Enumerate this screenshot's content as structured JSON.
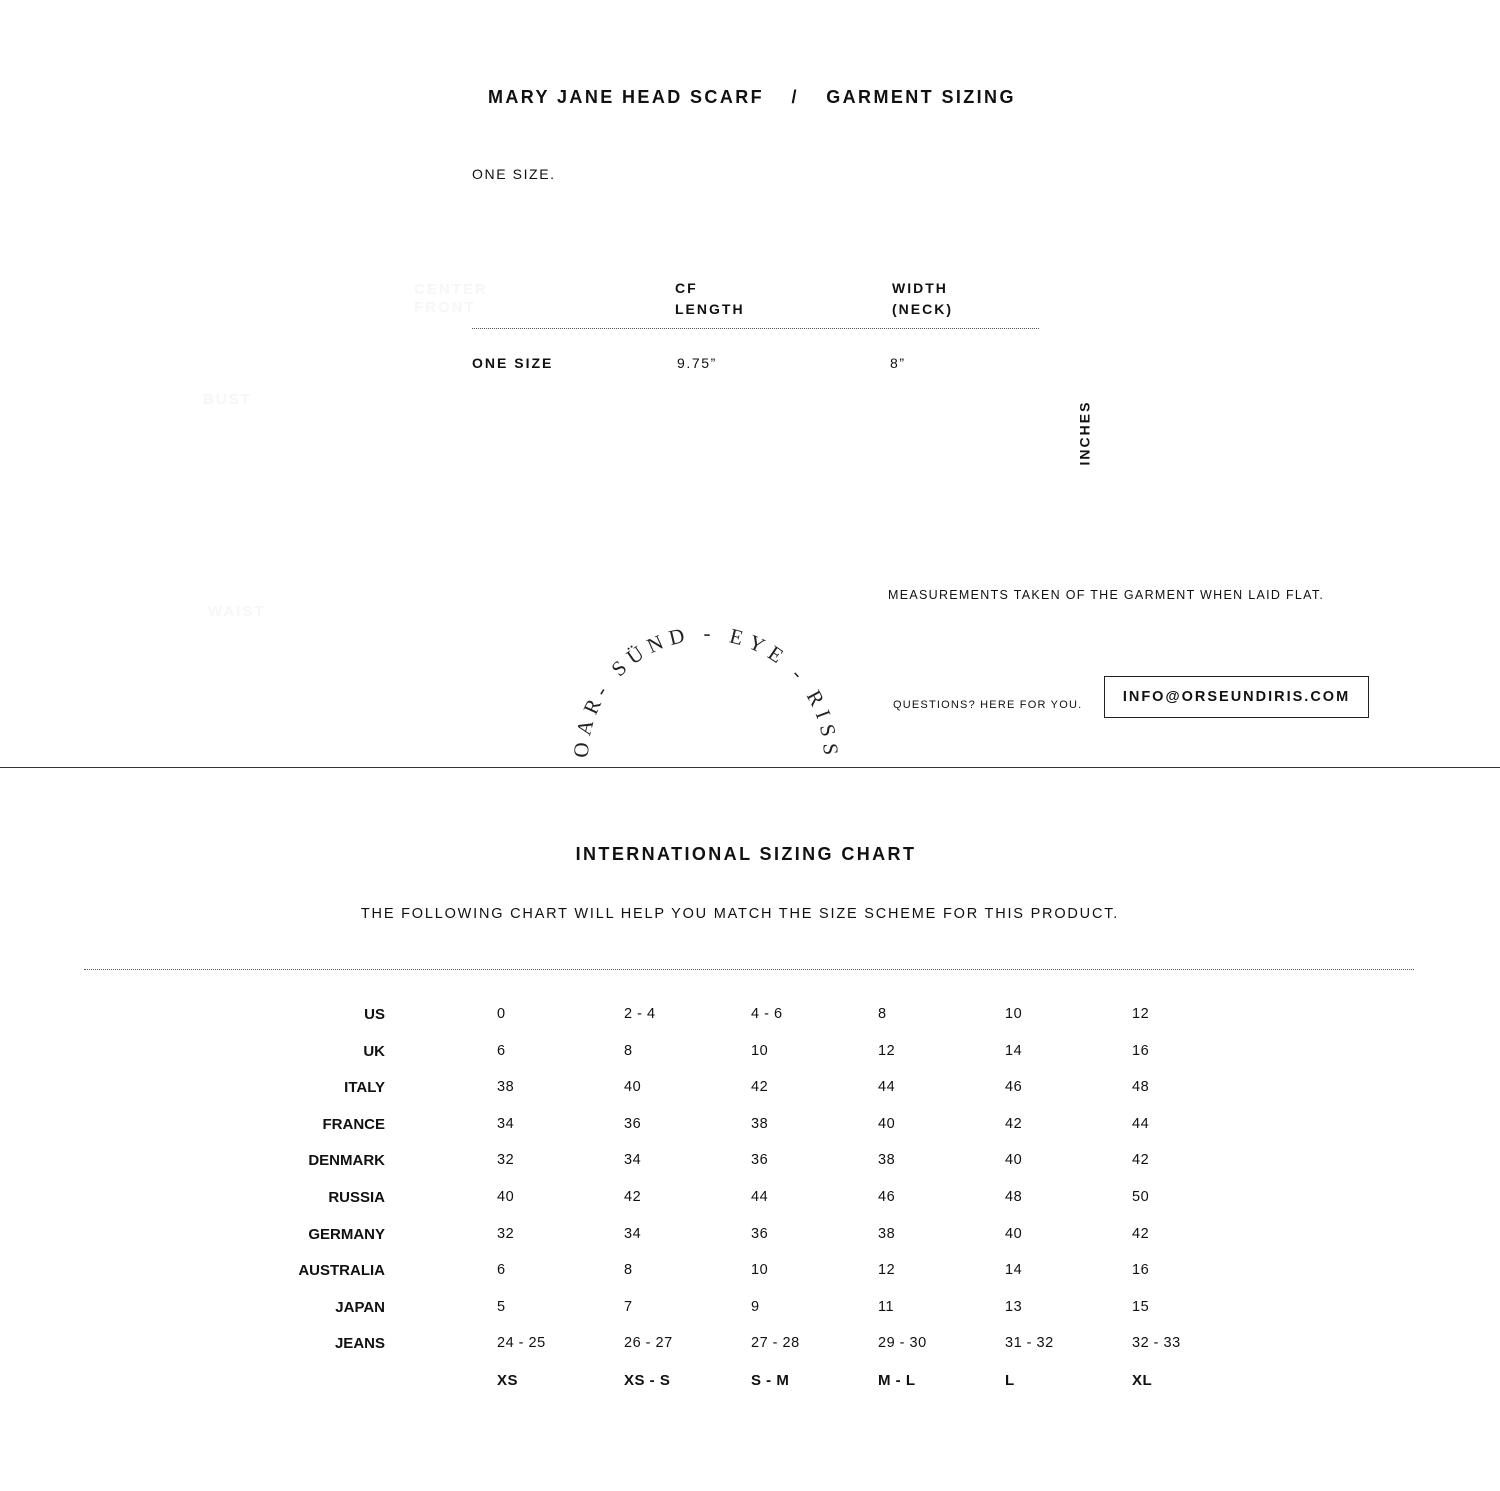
{
  "header": {
    "product": "MARY JANE HEAD SCARF",
    "separator": "/",
    "section": "GARMENT SIZING"
  },
  "size_note": "ONE SIZE.",
  "diagram_labels": {
    "center_front": [
      "CENTER",
      "FRONT"
    ],
    "bust": "BUST",
    "waist": "WAIST"
  },
  "garment_table": {
    "columns": [
      [
        "CF",
        "LENGTH"
      ],
      [
        "WIDTH",
        "(NECK)"
      ]
    ],
    "rows": [
      {
        "label": "ONE SIZE",
        "values": [
          "9.75”",
          "8”"
        ]
      }
    ],
    "unit": "INCHES"
  },
  "measurement_note": "MEASUREMENTS TAKEN OF THE GARMENT WHEN LAID FLAT.",
  "logo_text": "OAR- SÜND - EYE - RISS",
  "contact": {
    "prompt": "QUESTIONS?  HERE FOR YOU.",
    "email": "INFO@ORSEUNDIRIS.COM"
  },
  "international": {
    "title": "INTERNATIONAL SIZING CHART",
    "subtitle": "THE FOLLOWING CHART WILL HELP YOU MATCH THE SIZE SCHEME FOR THIS PRODUCT.",
    "rows": [
      {
        "label": "US",
        "values": [
          "0",
          "2 - 4",
          "4 - 6",
          "8",
          "10",
          "12"
        ]
      },
      {
        "label": "UK",
        "values": [
          "6",
          "8",
          "10",
          "12",
          "14",
          "16"
        ]
      },
      {
        "label": "ITALY",
        "values": [
          "38",
          "40",
          "42",
          "44",
          "46",
          "48"
        ]
      },
      {
        "label": "FRANCE",
        "values": [
          "34",
          "36",
          "38",
          "40",
          "42",
          "44"
        ]
      },
      {
        "label": "DENMARK",
        "values": [
          "32",
          "34",
          "36",
          "38",
          "40",
          "42"
        ]
      },
      {
        "label": "RUSSIA",
        "values": [
          "40",
          "42",
          "44",
          "46",
          "48",
          "50"
        ]
      },
      {
        "label": "GERMANY",
        "values": [
          "32",
          "34",
          "36",
          "38",
          "40",
          "42"
        ]
      },
      {
        "label": "AUSTRALIA",
        "values": [
          "6",
          "8",
          "10",
          "12",
          "14",
          "16"
        ]
      },
      {
        "label": "JAPAN",
        "values": [
          "5",
          "7",
          "9",
          "11",
          "13",
          "15"
        ]
      },
      {
        "label": "JEANS",
        "values": [
          "24 - 25",
          "26 - 27",
          "27 - 28",
          "29 - 30",
          "31 - 32",
          "32 - 33"
        ]
      }
    ],
    "sizes": [
      "XS",
      "XS - S",
      "S - M",
      "M - L",
      "L",
      "XL"
    ]
  }
}
